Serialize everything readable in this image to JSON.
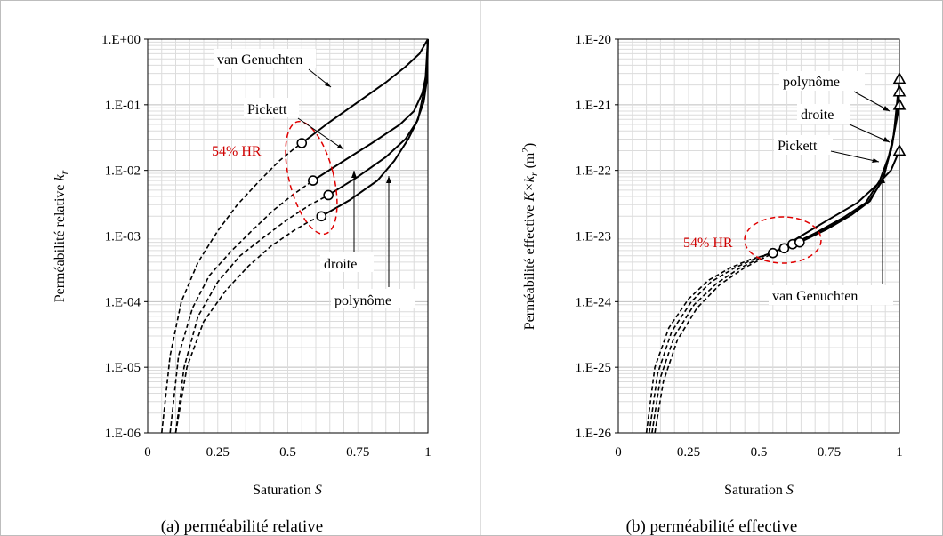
{
  "chart_data": [
    {
      "type": "line",
      "caption": "(a) perméabilité relative",
      "xlabel": "Saturation",
      "xlabel_var": "S",
      "ylabel": "Perméabilité relative",
      "ylabel_var": "k",
      "ylabel_sub": "r",
      "yscale": "log",
      "xlim": [
        0,
        1
      ],
      "ylim": [
        1e-06,
        1
      ],
      "xticks": [
        "0",
        "0.25",
        "0.5",
        "0.75",
        "1"
      ],
      "xtick_values": [
        0,
        0.25,
        0.5,
        0.75,
        1
      ],
      "yticks": [
        "1.E-06",
        "1.E-05",
        "1.E-04",
        "1.E-03",
        "1.E-02",
        "1.E-01",
        "1.E+00"
      ],
      "ytick_values": [
        1e-06,
        1e-05,
        0.0001,
        0.001,
        0.01,
        0.1,
        1
      ],
      "grid": true,
      "highlight_label": "54% HR",
      "series": [
        {
          "name": "van Genuchten",
          "dashed": {
            "x": [
              0.05,
              0.08,
              0.12,
              0.18,
              0.25,
              0.32,
              0.4,
              0.47,
              0.52,
              0.55
            ],
            "y": [
              1e-06,
              1.5e-05,
              0.0001,
              0.0004,
              0.0012,
              0.003,
              0.007,
              0.014,
              0.021,
              0.026
            ]
          },
          "solid": {
            "x": [
              0.55,
              0.65,
              0.75,
              0.85,
              0.92,
              0.97,
              1.0
            ],
            "y": [
              0.026,
              0.055,
              0.11,
              0.22,
              0.38,
              0.6,
              1
            ]
          },
          "marker": {
            "x": 0.55,
            "y": 0.026
          }
        },
        {
          "name": "Pickett",
          "dashed": {
            "x": [
              0.08,
              0.11,
              0.16,
              0.22,
              0.3,
              0.38,
              0.45,
              0.52,
              0.59
            ],
            "y": [
              1e-06,
              1.5e-05,
              8e-05,
              0.00025,
              0.0006,
              0.0013,
              0.0025,
              0.0043,
              0.007
            ]
          },
          "solid": {
            "x": [
              0.59,
              0.7,
              0.8,
              0.9,
              0.95,
              0.98,
              0.995,
              1.0
            ],
            "y": [
              0.007,
              0.014,
              0.026,
              0.05,
              0.08,
              0.15,
              0.3,
              1
            ]
          },
          "marker": {
            "x": 0.59,
            "y": 0.007
          }
        },
        {
          "name": "droite",
          "dashed": {
            "x": [
              0.1,
              0.13,
              0.18,
              0.25,
              0.33,
              0.42,
              0.5,
              0.58,
              0.645
            ],
            "y": [
              1e-06,
              1e-05,
              6e-05,
              0.0002,
              0.0005,
              0.001,
              0.0018,
              0.003,
              0.0042
            ]
          },
          "solid": {
            "x": [
              0.645,
              0.75,
              0.85,
              0.92,
              0.96,
              0.985,
              0.997,
              1.0
            ],
            "y": [
              0.0042,
              0.008,
              0.016,
              0.03,
              0.055,
              0.11,
              0.25,
              1
            ]
          },
          "marker": {
            "x": 0.645,
            "y": 0.0042
          }
        },
        {
          "name": "polynôme",
          "dashed": {
            "x": [
              0.1,
              0.14,
              0.2,
              0.28,
              0.36,
              0.44,
              0.52,
              0.58,
              0.62
            ],
            "y": [
              1e-06,
              1e-05,
              5e-05,
              0.00015,
              0.00035,
              0.0007,
              0.0012,
              0.0017,
              0.002
            ]
          },
          "solid": {
            "x": [
              0.62,
              0.72,
              0.82,
              0.88,
              0.93,
              0.965,
              0.99,
              1.0
            ],
            "y": [
              0.002,
              0.0035,
              0.007,
              0.014,
              0.03,
              0.06,
              0.2,
              1
            ]
          },
          "marker": {
            "x": 0.62,
            "y": 0.002
          }
        }
      ]
    },
    {
      "type": "line",
      "caption": "(b) perméabilité effective",
      "xlabel": "Saturation",
      "xlabel_var": "S",
      "ylabel": "Perméabilité effective",
      "ylabel_var": "K×k",
      "ylabel_sub": "r",
      "ylabel_unit": "(m",
      "ylabel_unit_sup": "2",
      "ylabel_unit_end": ")",
      "yscale": "log",
      "xlim": [
        0,
        1
      ],
      "ylim": [
        1e-26,
        1e-20
      ],
      "xticks": [
        "0",
        "0.25",
        "0.5",
        "0.75",
        "1"
      ],
      "xtick_values": [
        0,
        0.25,
        0.5,
        0.75,
        1
      ],
      "yticks": [
        "1.E-26",
        "1.E-25",
        "1.E-24",
        "1.E-23",
        "1.E-22",
        "1.E-21",
        "1.E-20"
      ],
      "ytick_values": [
        1e-26,
        1e-25,
        1e-24,
        1e-23,
        1e-22,
        1e-21,
        1e-20
      ],
      "grid": true,
      "highlight_label": "54% HR",
      "series": [
        {
          "name": "van Genuchten",
          "dashed": {
            "x": [
              0.1,
              0.13,
              0.18,
              0.25,
              0.32,
              0.4,
              0.47,
              0.55
            ],
            "y": [
              1e-26,
              1e-25,
              4e-25,
              1.1e-24,
              2.1e-24,
              3.3e-24,
              4.4e-24,
              5.5e-24
            ]
          },
          "solid": {
            "x": [
              0.55,
              0.65,
              0.75,
              0.85,
              0.92,
              0.97,
              1.0
            ],
            "y": [
              5.5e-24,
              1e-23,
              1.8e-23,
              3.2e-23,
              6e-23,
              1e-22,
              2e-22
            ]
          },
          "marker": {
            "x": 0.55,
            "y": 5.5e-24
          },
          "end_marker": {
            "x": 1.0,
            "y": 2e-22
          }
        },
        {
          "name": "Pickett",
          "dashed": {
            "x": [
              0.11,
              0.14,
              0.19,
              0.26,
              0.33,
              0.41,
              0.49,
              0.59
            ],
            "y": [
              1e-26,
              8e-26,
              3.5e-25,
              1e-24,
              2e-24,
              3.2e-24,
              4.6e-24,
              6.5e-24
            ]
          },
          "solid": {
            "x": [
              0.59,
              0.7,
              0.8,
              0.88,
              0.93,
              0.97,
              1.0
            ],
            "y": [
              6.5e-24,
              1.1e-23,
              1.9e-23,
              3.2e-23,
              7e-23,
              2e-22,
              1e-21
            ]
          },
          "marker": {
            "x": 0.59,
            "y": 6.5e-24
          },
          "end_marker": {
            "x": 1.0,
            "y": 1e-21
          }
        },
        {
          "name": "droite",
          "dashed": {
            "x": [
              0.12,
              0.15,
              0.2,
              0.27,
              0.35,
              0.43,
              0.52,
              0.62
            ],
            "y": [
              1e-26,
              7e-26,
              3e-25,
              9e-25,
              1.9e-24,
              3.2e-24,
              5e-24,
              7.5e-24
            ]
          },
          "solid": {
            "x": [
              0.62,
              0.72,
              0.82,
              0.89,
              0.94,
              0.975,
              1.0
            ],
            "y": [
              7.5e-24,
              1.2e-23,
              2e-23,
              3.3e-23,
              7e-23,
              2.5e-22,
              1.6e-21
            ]
          },
          "marker": {
            "x": 0.62,
            "y": 7.5e-24
          },
          "end_marker": {
            "x": 1.0,
            "y": 1.6e-21
          }
        },
        {
          "name": "polynôme",
          "dashed": {
            "x": [
              0.13,
              0.16,
              0.21,
              0.28,
              0.36,
              0.45,
              0.54,
              0.645
            ],
            "y": [
              1e-26,
              6e-26,
              2.6e-25,
              8e-25,
              1.8e-24,
              3.3e-24,
              5.2e-24,
              8e-24
            ]
          },
          "solid": {
            "x": [
              0.645,
              0.74,
              0.83,
              0.895,
              0.945,
              0.98,
              1.0
            ],
            "y": [
              8e-24,
              1.25e-23,
              2.1e-23,
              3.4e-23,
              8e-23,
              3.5e-22,
              2.5e-21
            ]
          },
          "marker": {
            "x": 0.645,
            "y": 8e-24
          },
          "end_marker": {
            "x": 1.0,
            "y": 2.5e-21
          }
        }
      ]
    }
  ]
}
